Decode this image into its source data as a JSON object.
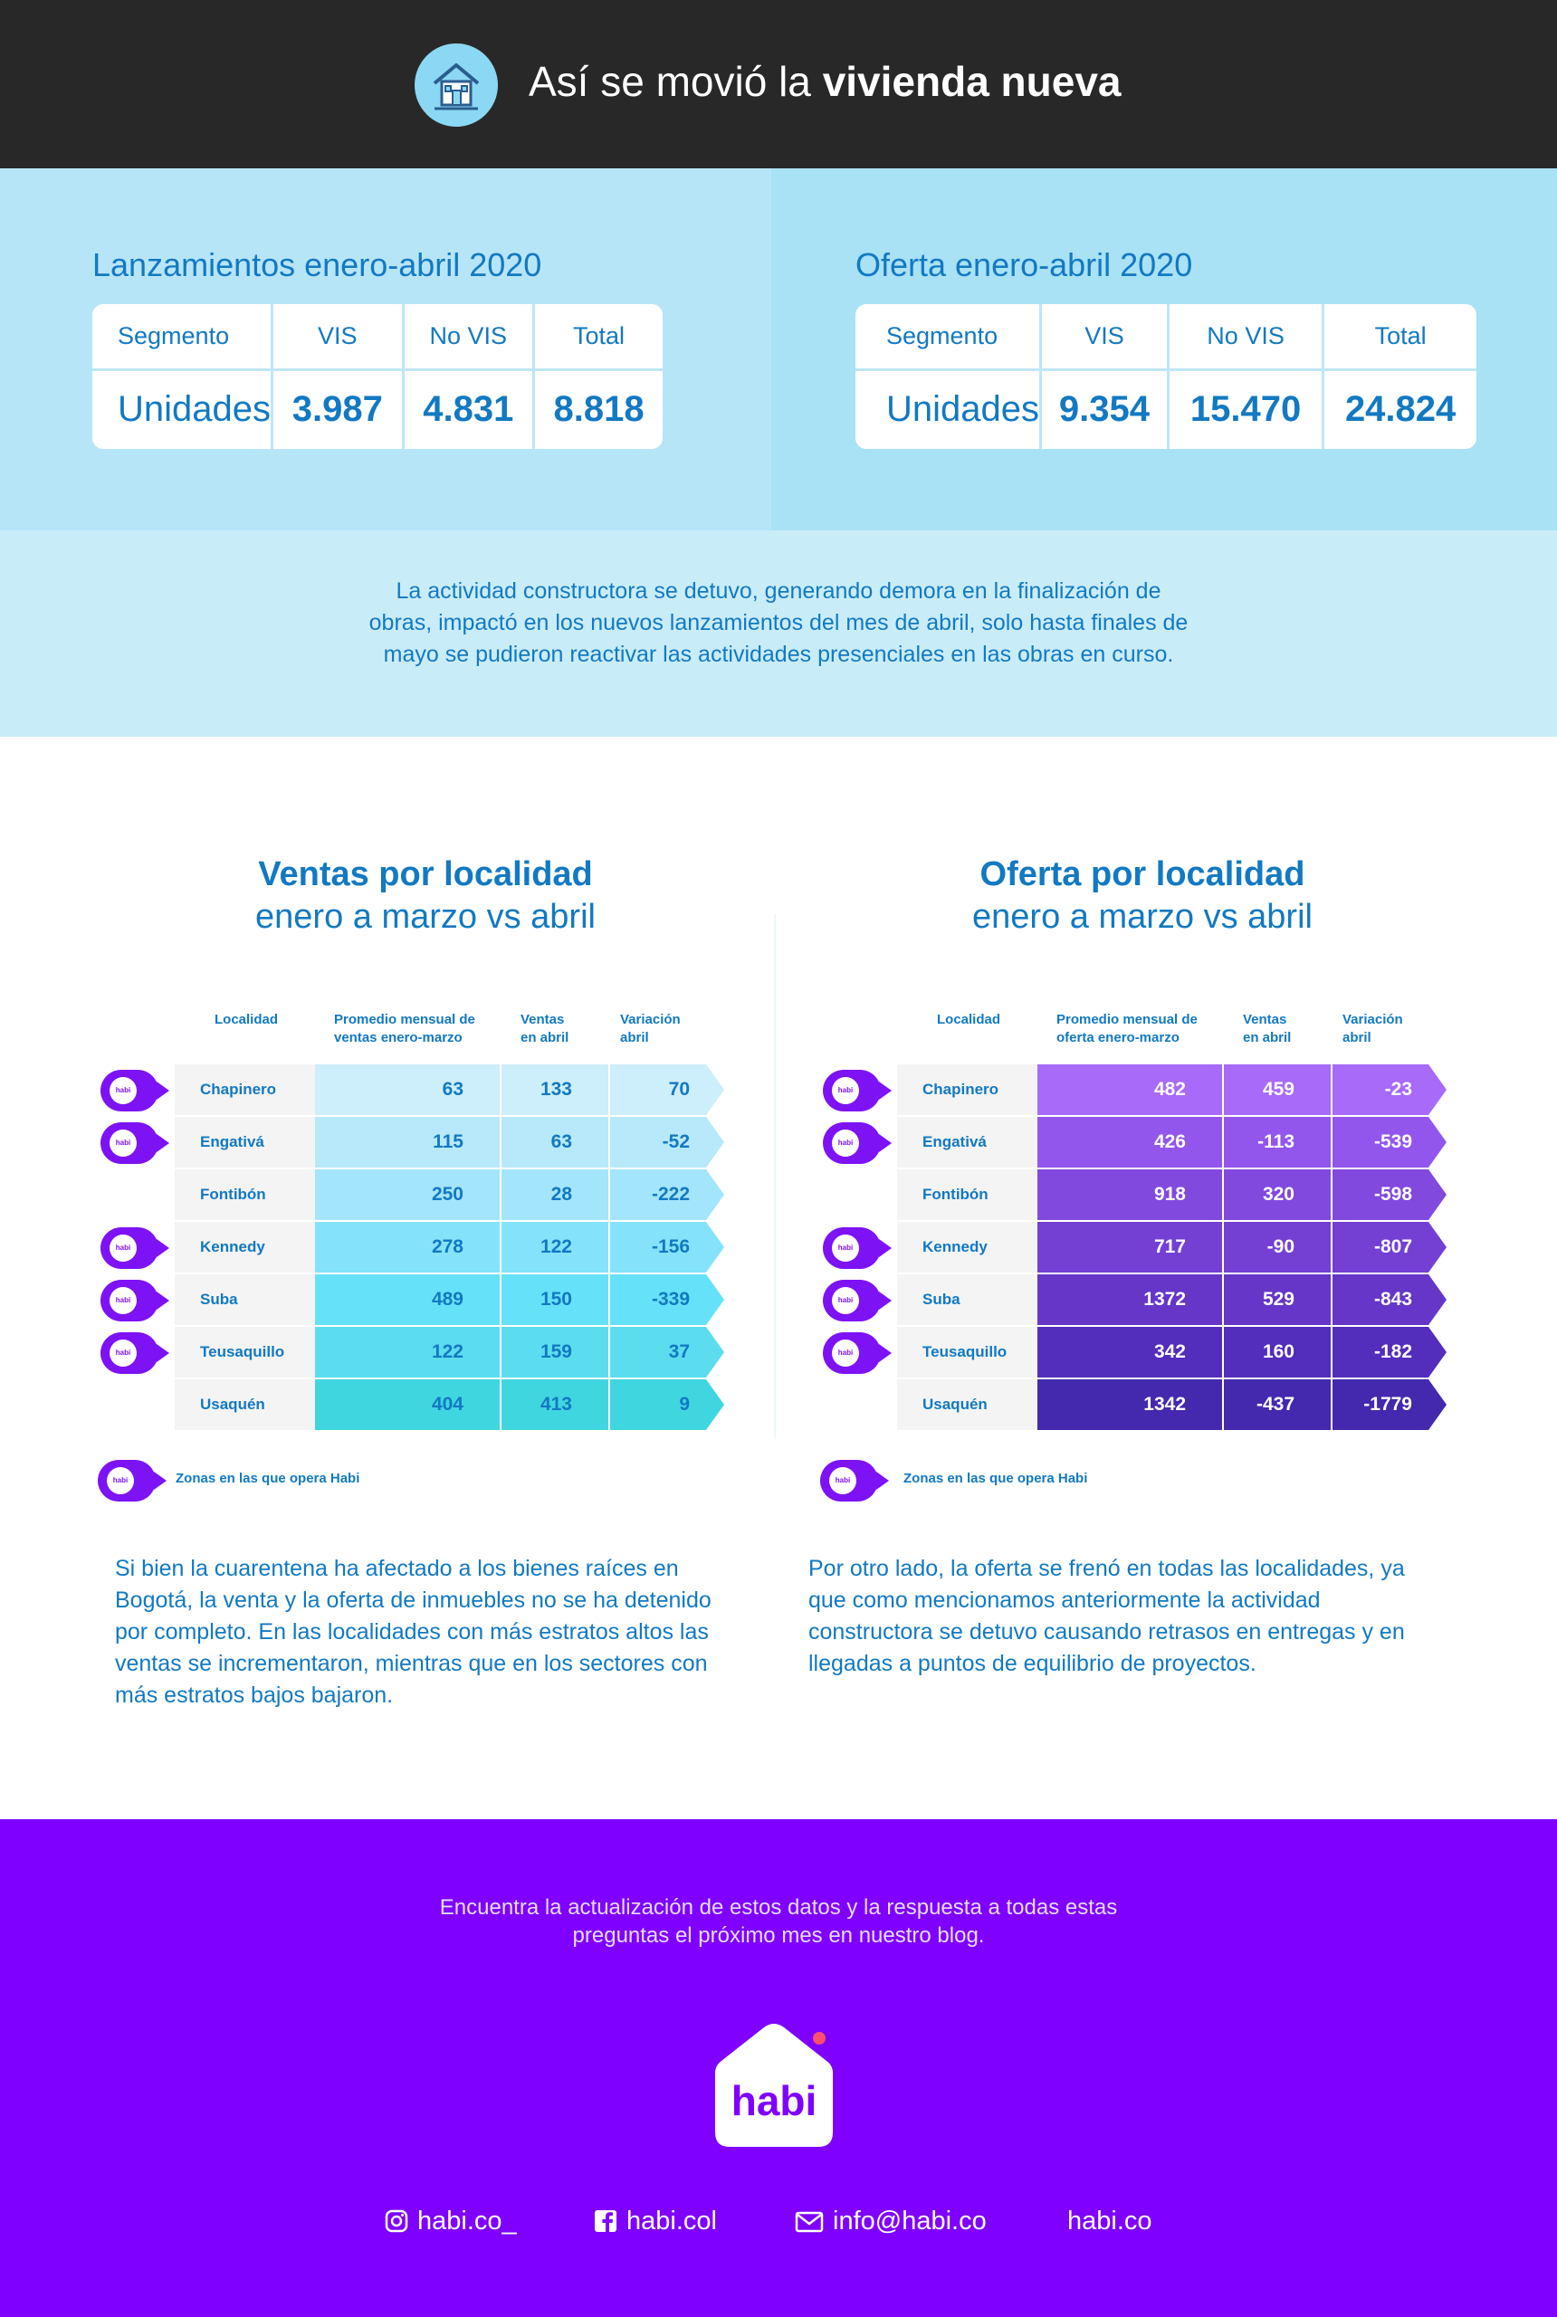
{
  "header": {
    "title_prefix": "Así se movió la",
    "title_bold": "vivienda nueva",
    "icon": "house-icon"
  },
  "launches": {
    "title": "Lanzamientos enero-abril 2020",
    "segment_label": "Segmento",
    "units_label": "Unidades",
    "columns": [
      "VIS",
      "No VIS",
      "Total"
    ],
    "values": [
      "3.987",
      "4.831",
      "8.818"
    ]
  },
  "offer": {
    "title": "Oferta enero-abril 2020",
    "segment_label": "Segmento",
    "units_label": "Unidades",
    "columns": [
      "VIS",
      "No VIS",
      "Total"
    ],
    "values": [
      "9.354",
      "15.470",
      "24.824"
    ]
  },
  "intro": {
    "text": "La actividad constructora se detuvo, generando demora en la finalización de obras, impactó en los nuevos lanzamientos del mes de abril, solo hasta finales de mayo se pudieron reactivar las actividades presenciales en las obras en curso."
  },
  "sales": {
    "title_bold": "Ventas por localidad",
    "title_sub": "enero a marzo vs abril",
    "headers": [
      "Localidad",
      "Promedio mensual de ventas enero-marzo",
      "Ventas en abril",
      "Variación abril"
    ],
    "rows": [
      {
        "name": "Chapinero",
        "habi": true,
        "avg": "63",
        "april": "133",
        "var": "70"
      },
      {
        "name": "Engativá",
        "habi": true,
        "avg": "115",
        "april": "63",
        "var": "-52"
      },
      {
        "name": "Fontibón",
        "habi": false,
        "avg": "250",
        "april": "28",
        "var": "-222"
      },
      {
        "name": "Kennedy",
        "habi": true,
        "avg": "278",
        "april": "122",
        "var": "-156"
      },
      {
        "name": "Suba",
        "habi": true,
        "avg": "489",
        "april": "150",
        "var": "-339"
      },
      {
        "name": "Teusaquillo",
        "habi": true,
        "avg": "122",
        "april": "159",
        "var": "37"
      },
      {
        "name": "Usaquén",
        "habi": false,
        "avg": "404",
        "april": "413",
        "var": "9"
      }
    ],
    "row_colors": [
      "#cdeefb",
      "#b7e9fb",
      "#a3e5fb",
      "#84e3fb",
      "#66e1fa",
      "#5cdcef",
      "#40d6e0"
    ],
    "text_color": "#1279c2",
    "legend": "Zonas en las que opera Habi",
    "body": "Si bien la cuarentena ha afectado a los bienes raíces en Bogotá,  la venta y la oferta de inmuebles no se ha detenido por completo. En las localidades con más estratos altos las ventas se incrementaron, mientras que en los sectores con más estratos bajos bajaron."
  },
  "supply": {
    "title_bold": "Oferta por localidad",
    "title_sub": "enero a marzo vs abril",
    "headers": [
      "Localidad",
      "Promedio mensual de oferta enero-marzo",
      "Ventas en abril",
      "Variación abril"
    ],
    "rows": [
      {
        "name": "Chapinero",
        "habi": true,
        "avg": "482",
        "april": "459",
        "var": "-23"
      },
      {
        "name": "Engativá",
        "habi": true,
        "avg": "426",
        "april": "-113",
        "var": "-539"
      },
      {
        "name": "Fontibón",
        "habi": false,
        "avg": "918",
        "april": "320",
        "var": "-598"
      },
      {
        "name": "Kennedy",
        "habi": true,
        "avg": "717",
        "april": "-90",
        "var": "-807"
      },
      {
        "name": "Suba",
        "habi": true,
        "avg": "1372",
        "april": "529",
        "var": "-843"
      },
      {
        "name": "Teusaquillo",
        "habi": true,
        "avg": "342",
        "april": "160",
        "var": "-182"
      },
      {
        "name": "Usaquén",
        "habi": false,
        "avg": "1342",
        "april": "-437",
        "var": "-1779"
      }
    ],
    "row_colors": [
      "#a86af9",
      "#9356ec",
      "#8249df",
      "#7440d4",
      "#6536c7",
      "#532dbb",
      "#4428ae"
    ],
    "text_color": "#ffffff",
    "legend": "Zonas en las que opera Habi",
    "body": "Por otro lado, la oferta se frenó en todas las localidades, ya que como mencionamos anteriormente la actividad constructora se detuvo causando retrasos en entregas y en llegadas a puntos de equilibrio de proyectos."
  },
  "footer": {
    "text": "Encuentra la actualización de estos datos y la respuesta a todas estas preguntas el próximo mes en nuestro blog.",
    "logo": "habi",
    "pin_label": "habi",
    "instagram": "habi.co_",
    "facebook": "habi.col",
    "email": "info@habi.co",
    "website": "habi.co"
  },
  "colors": {
    "brand_purple": "#7f00ff",
    "brand_blue": "#1279c2",
    "header_dark": "#282828"
  }
}
